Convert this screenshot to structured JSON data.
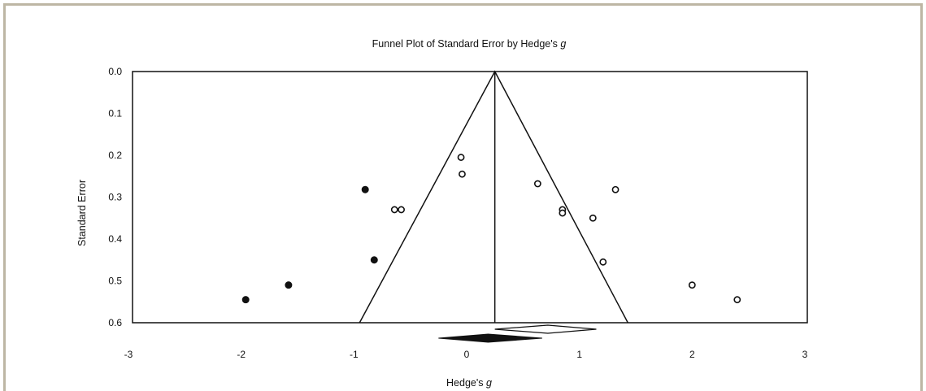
{
  "chart_data": {
    "type": "scatter",
    "title": "Funnel Plot of Standard Error by Hedge's",
    "title_italic": "g",
    "xlabel": "Hedge's",
    "xlabel_italic": "g",
    "ylabel": "Standard Error",
    "xlim": [
      -3,
      3
    ],
    "ylim": [
      0.6,
      0.0
    ],
    "y_inverted": true,
    "grid": false,
    "x_ticks": [
      -3,
      -2,
      -1,
      0,
      1,
      2,
      3
    ],
    "y_ticks": [
      "0.0",
      "0.1",
      "0.2",
      "0.3",
      "0.4",
      "0.5",
      "0.6"
    ],
    "funnel": {
      "apex_x": 0.25,
      "apex_y": 0.0,
      "base_left_x": -0.95,
      "base_right_x": 1.43,
      "base_y": 0.6
    },
    "center_line_x": 0.25,
    "observed_points": [
      {
        "x": -0.05,
        "y": 0.205
      },
      {
        "x": -0.04,
        "y": 0.245
      },
      {
        "x": -0.64,
        "y": 0.33
      },
      {
        "x": -0.58,
        "y": 0.33
      },
      {
        "x": 0.63,
        "y": 0.268
      },
      {
        "x": 0.85,
        "y": 0.33
      },
      {
        "x": 0.85,
        "y": 0.338
      },
      {
        "x": 1.12,
        "y": 0.35
      },
      {
        "x": 1.32,
        "y": 0.282
      },
      {
        "x": 1.21,
        "y": 0.455
      },
      {
        "x": 2.0,
        "y": 0.51
      },
      {
        "x": 2.4,
        "y": 0.545
      }
    ],
    "imputed_points": [
      {
        "x": -0.9,
        "y": 0.282
      },
      {
        "x": -0.82,
        "y": 0.45
      },
      {
        "x": -1.58,
        "y": 0.51
      },
      {
        "x": -1.96,
        "y": 0.545
      }
    ],
    "observed_diamond": {
      "center": 0.72,
      "low": 0.25,
      "high": 1.15
    },
    "adjusted_diamond": {
      "center": 0.19,
      "low": -0.25,
      "high": 0.67
    }
  },
  "colors": {
    "frame_border": "#bdb6a4",
    "ink": "#111111"
  }
}
